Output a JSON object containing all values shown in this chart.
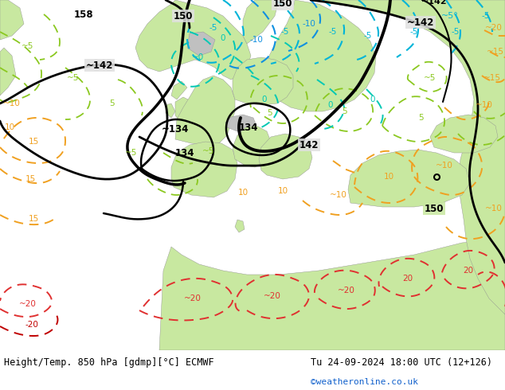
{
  "title_left": "Height/Temp. 850 hPa [gdmp][°C] ECMWF",
  "title_right": "Tu 24-09-2024 18:00 UTC (12+126)",
  "credit": "©weatheronline.co.uk",
  "bg_color": "#ffffff",
  "fig_width": 6.34,
  "fig_height": 4.9,
  "dpi": 100,
  "map_bg": "#e8e8e8",
  "land_green": "#c8e6a0",
  "land_light_green": "#d8f0b0",
  "gray_land": "#c8c8c8",
  "ocean_color": "#dde8f0"
}
